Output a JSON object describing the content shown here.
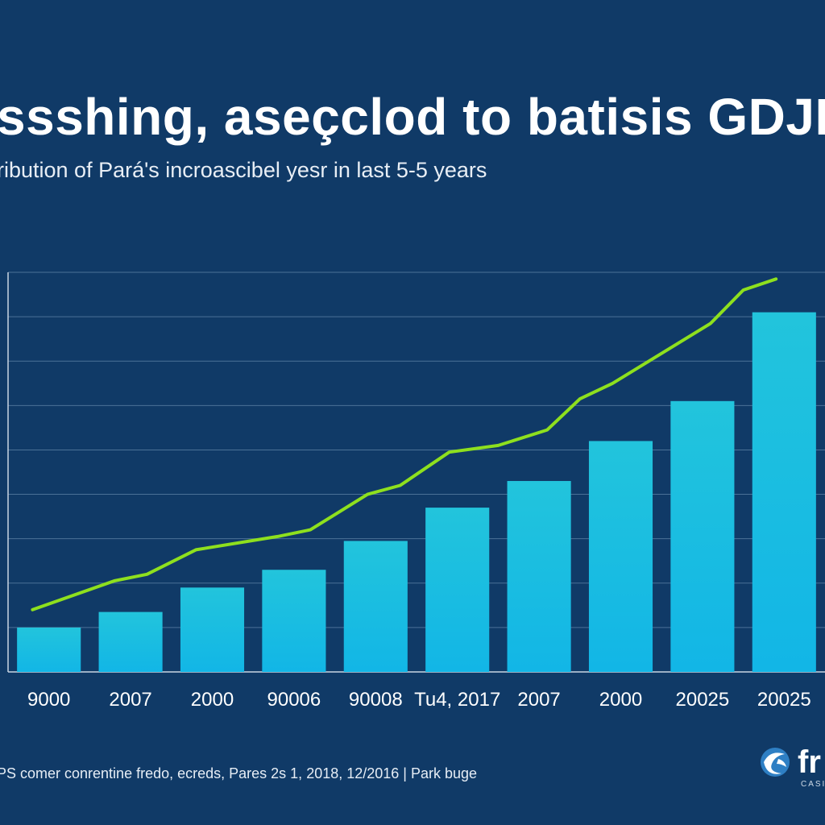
{
  "header": {
    "title": "ssshing, aseçclod to batisis GDJP",
    "subtitle": "ribution of Pará's incroascibel yesr in last 5-5 years"
  },
  "footer": {
    "source": "PS comer conrentine fredo, ecreds, Pares 2s 1, 2018, 12/2016 | Park buge"
  },
  "logo": {
    "text": "fr",
    "tagline": "CASI",
    "icon": "globe-swirl-icon"
  },
  "colors": {
    "background": "#103a67",
    "bar_top": "#22c4dc",
    "bar_bottom": "#12b6e6",
    "line": "#8ee01e",
    "grid": "#5f84a8"
  },
  "chart_data": {
    "type": "bar",
    "title": "ssshing, aseçclod to batisis GDJP",
    "subtitle": "ribution of Pará's incroascibel yesr in last 5-5 years",
    "categories": [
      "9000",
      "2007",
      "2000",
      "90006",
      "90008",
      "Tu4, 2017",
      "2007",
      "2000",
      "20025",
      "20025"
    ],
    "ylim": [
      0,
      9
    ],
    "grid": true,
    "series": [
      {
        "name": "bars",
        "type": "bar",
        "values": [
          1.0,
          1.35,
          1.9,
          2.3,
          2.95,
          3.7,
          4.3,
          5.2,
          6.1,
          8.1
        ]
      },
      {
        "name": "trend",
        "type": "line",
        "x": [
          0.3,
          1.3,
          1.7,
          2.3,
          3.3,
          3.7,
          4.4,
          4.8,
          5.4,
          6.0,
          6.6,
          7.0,
          7.4,
          8.2,
          8.6,
          9.0,
          9.4
        ],
        "values": [
          1.4,
          2.05,
          2.2,
          2.75,
          3.05,
          3.2,
          4.0,
          4.2,
          4.95,
          5.1,
          5.45,
          6.15,
          6.5,
          7.4,
          7.85,
          8.6,
          8.85
        ]
      }
    ]
  }
}
